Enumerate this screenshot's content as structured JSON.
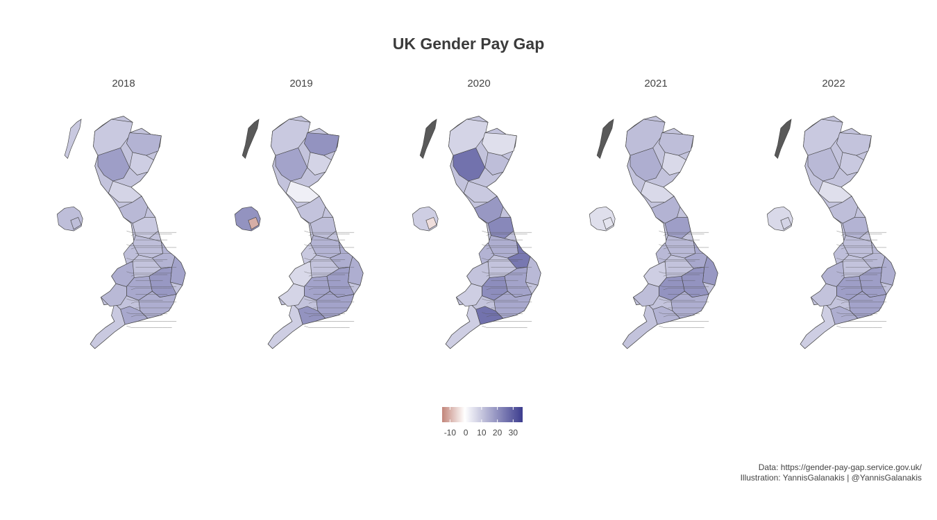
{
  "title": "UK Gender Pay Gap",
  "map_data": {
    "type": "choropleth",
    "facets": [
      {
        "label": "2018"
      },
      {
        "label": "2019"
      },
      {
        "label": "2020"
      },
      {
        "label": "2021"
      },
      {
        "label": "2022"
      }
    ],
    "legend": {
      "ticks": [
        -10,
        0,
        10,
        20,
        30
      ],
      "tick_labels": [
        "-10",
        "0",
        "10",
        "20",
        "30"
      ],
      "range": [
        -15,
        36
      ],
      "colors": {
        "low": "#c2857a",
        "mid": "#ffffff",
        "high": "#3c3c8e"
      },
      "na_color": "#595959"
    }
  },
  "caption": {
    "line1": "Data: https://gender-pay-gap.service.gov.uk/",
    "line2": "Illustration: YannisGalanakis | @YannisGalanakis"
  }
}
